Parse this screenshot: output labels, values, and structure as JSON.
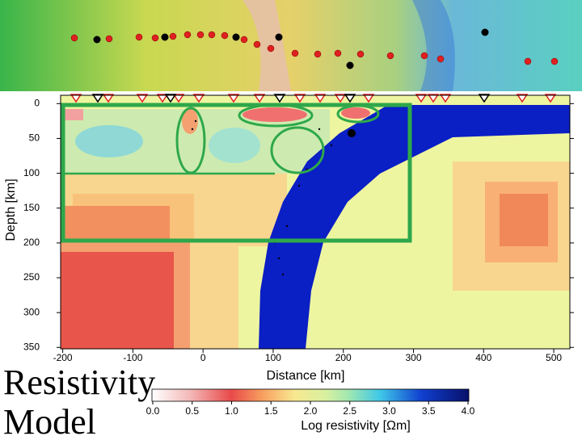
{
  "title": [
    "Resistivity",
    "Model"
  ],
  "section": {
    "x_label": "Distance [km]",
    "y_label": "Depth [km]",
    "xlim": [
      -203,
      523
    ],
    "ylim": [
      -12,
      352
    ],
    "xticks": [
      -200,
      -100,
      0,
      100,
      200,
      300,
      400,
      500
    ],
    "yticks": [
      0,
      50,
      100,
      150,
      200,
      250,
      300,
      350
    ]
  },
  "colorbar": {
    "label": "Log resistivity [Ωm]",
    "lim": [
      0,
      4
    ],
    "ticks": [
      {
        "value": 0,
        "label": "0.0"
      },
      {
        "value": 0.5,
        "label": "0.5"
      },
      {
        "value": 1,
        "label": "1.0"
      },
      {
        "value": 1.5,
        "label": "1.5"
      },
      {
        "value": 2,
        "label": "2.0"
      },
      {
        "value": 2.5,
        "label": "2.5"
      },
      {
        "value": 3,
        "label": "3.0"
      },
      {
        "value": 3.5,
        "label": "3.5"
      },
      {
        "value": 4,
        "label": "4.0"
      }
    ]
  }
}
